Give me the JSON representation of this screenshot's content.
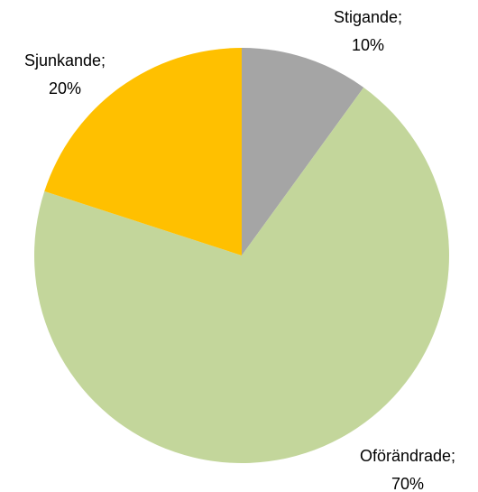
{
  "chart_data": {
    "type": "pie",
    "categories": [
      "Stigande;",
      "Oförändrade;",
      "Sjunkande;"
    ],
    "values": [
      10,
      70,
      20
    ],
    "value_labels": [
      "10%",
      "70%",
      "20%"
    ],
    "colors": [
      "#a5a5a5",
      "#c3d69b",
      "#ffc000"
    ]
  }
}
